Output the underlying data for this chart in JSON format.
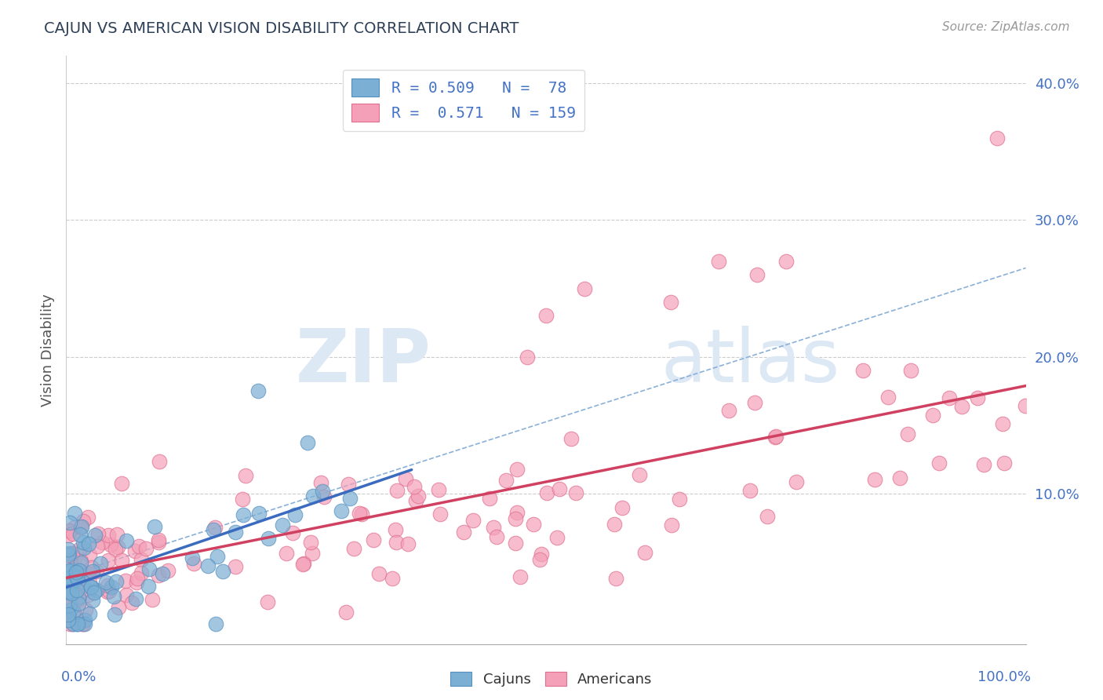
{
  "title": "CAJUN VS AMERICAN VISION DISABILITY CORRELATION CHART",
  "source": "Source: ZipAtlas.com",
  "ylabel": "Vision Disability",
  "cajun_R": 0.509,
  "cajun_N": 78,
  "american_R": 0.571,
  "american_N": 159,
  "cajun_color": "#7bafd4",
  "cajun_edge_color": "#5590c0",
  "american_color": "#f4a0b8",
  "american_edge_color": "#e07090",
  "cajun_line_color": "#3a6bbf",
  "american_line_color": "#d04060",
  "dashed_line_color": "#8ab0d8",
  "title_color": "#2e4057",
  "axis_label_color": "#4472c4",
  "background_color": "#ffffff",
  "ytick_vals": [
    0.0,
    0.1,
    0.2,
    0.3,
    0.4
  ],
  "xlim": [
    0,
    1.0
  ],
  "ylim": [
    -0.01,
    0.42
  ],
  "watermark_zip": "ZIP",
  "watermark_atlas": "atlas"
}
